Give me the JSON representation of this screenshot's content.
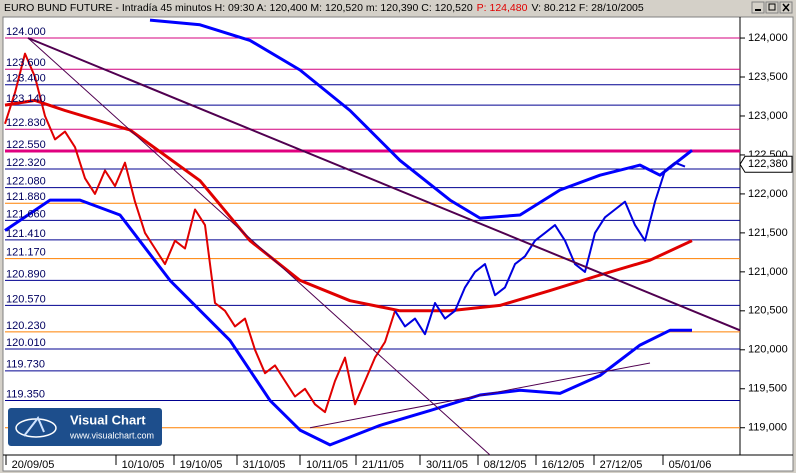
{
  "chart_data": {
    "type": "line",
    "title": "EURO BUND FUTURE - Intradía 45 minutos H: 09:30 A: 120,400 M: 120,520 m: 120,390 C: 120,520",
    "title_highlight": "P: 124,480",
    "title_end": "V: 80.212 F: 28/10/2005",
    "xlim": [
      0,
      147
    ],
    "xticks": [
      {
        "value": 5.6,
        "label": "20/09/05"
      },
      {
        "value": 27.6,
        "label": "10/10/05"
      },
      {
        "value": 39.2,
        "label": "19/10/05"
      },
      {
        "value": 51.8,
        "label": "31/10/05"
      },
      {
        "value": 64.4,
        "label": "10/11/05"
      },
      {
        "value": 75.6,
        "label": "21/11/05"
      },
      {
        "value": 88.4,
        "label": "30/11/05"
      },
      {
        "value": 100,
        "label": "08/12/05"
      },
      {
        "value": 111.6,
        "label": "16/12/05"
      },
      {
        "value": 123.2,
        "label": "27/12/05"
      },
      {
        "value": 137,
        "label": "05/01/06"
      }
    ],
    "ylim": [
      118.65,
      124.27
    ],
    "yticks": [
      {
        "value": 124,
        "label": "124,000"
      },
      {
        "value": 123.5,
        "label": "123,500"
      },
      {
        "value": 123,
        "label": "123,000"
      },
      {
        "value": 122.5,
        "label": "122,500"
      },
      {
        "value": 122,
        "label": "122,000"
      },
      {
        "value": 121.5,
        "label": "121,500"
      },
      {
        "value": 121,
        "label": "121,000"
      },
      {
        "value": 120.5,
        "label": "120,500"
      },
      {
        "value": 120,
        "label": "120,000"
      },
      {
        "value": 119.5,
        "label": "119,500"
      },
      {
        "value": 119,
        "label": "119,000"
      }
    ],
    "last": {
      "value": 122.38,
      "label": "122,380"
    },
    "levels": [
      {
        "value": 124.0,
        "label": "124.000",
        "color": "#d4007f"
      },
      {
        "value": 123.6,
        "label": "123.600",
        "color": "#d4007f"
      },
      {
        "value": 123.4,
        "label": "123.400",
        "color": "#000090"
      },
      {
        "value": 123.14,
        "label": "123.140",
        "color": "#000090"
      },
      {
        "value": 122.83,
        "label": "122.830",
        "color": "#d4007f"
      },
      {
        "value": 122.55,
        "label": "122.550",
        "color": "#e0007f",
        "width": 3
      },
      {
        "value": 122.32,
        "label": "122.320",
        "color": "#000090"
      },
      {
        "value": 122.08,
        "label": "122.080",
        "color": "#000090"
      },
      {
        "value": 121.88,
        "label": "121.880",
        "color": "#ff8000"
      },
      {
        "value": 121.66,
        "label": "121.660",
        "color": "#000090"
      },
      {
        "value": 121.41,
        "label": "121.410",
        "color": "#000090"
      },
      {
        "value": 121.17,
        "label": "121.170",
        "color": "#ff8000"
      },
      {
        "value": 120.89,
        "label": "120.890",
        "color": "#000090"
      },
      {
        "value": 120.57,
        "label": "120.570",
        "color": "#000090"
      },
      {
        "value": 120.23,
        "label": "120.230",
        "color": "#ff8000"
      },
      {
        "value": 120.01,
        "label": "120.010",
        "color": "#000090"
      },
      {
        "value": 119.73,
        "label": "119.730",
        "color": "#000090"
      },
      {
        "value": 119.35,
        "label": "119.350",
        "color": "#000090"
      },
      {
        "value": 119.0,
        "color": "#ff8000"
      }
    ],
    "series": [
      {
        "color": "#0000ff",
        "width": 3,
        "x": [
          29,
          39,
          49,
          59,
          69,
          79,
          89,
          95,
          103,
          111,
          119,
          127,
          131,
          137.4
        ],
        "values": [
          124.23,
          124.17,
          123.97,
          123.59,
          123.07,
          122.43,
          121.92,
          121.69,
          121.73,
          122.05,
          122.24,
          122.37,
          122.24,
          122.56
        ]
      },
      {
        "color": "#0000ff",
        "width": 3,
        "x": [
          0,
          9,
          15,
          23,
          33,
          45,
          53,
          59,
          65,
          75,
          85,
          95,
          103,
          111,
          119,
          127,
          133,
          137.4
        ],
        "values": [
          121.53,
          121.92,
          121.92,
          121.73,
          120.89,
          120.12,
          119.35,
          118.97,
          118.78,
          119.03,
          119.22,
          119.42,
          119.48,
          119.44,
          119.67,
          120.06,
          120.25,
          120.25
        ]
      },
      {
        "color": "#e00000",
        "width": 3,
        "x": [
          0,
          6,
          12,
          25,
          39,
          49,
          59,
          69,
          79,
          89,
          99,
          109,
          119,
          129,
          137.4
        ],
        "values": [
          123.14,
          123.2,
          123.07,
          122.82,
          122.17,
          121.4,
          120.89,
          120.63,
          120.5,
          120.5,
          120.57,
          120.76,
          120.96,
          121.15,
          121.4
        ]
      },
      {
        "color": "#e00000",
        "width": 2,
        "x": [
          0,
          2,
          4,
          6,
          8,
          10,
          12,
          14,
          16,
          18,
          20,
          22,
          24,
          26,
          28,
          30,
          32,
          34,
          36,
          38,
          40,
          42,
          44,
          46,
          48,
          50,
          52,
          54,
          56,
          58,
          60,
          62,
          64,
          66,
          68,
          70,
          72,
          74,
          76,
          78
        ],
        "values": [
          122.9,
          123.3,
          123.8,
          123.5,
          123.0,
          122.7,
          122.8,
          122.6,
          122.2,
          122.0,
          122.3,
          122.1,
          122.4,
          121.9,
          121.5,
          121.3,
          121.1,
          121.4,
          121.3,
          121.8,
          121.6,
          120.6,
          120.5,
          120.3,
          120.4,
          120.0,
          119.7,
          119.8,
          119.6,
          119.4,
          119.5,
          119.3,
          119.2,
          119.6,
          119.9,
          119.3,
          119.6,
          119.9,
          120.1,
          120.5
        ]
      },
      {
        "color": "#0000e0",
        "width": 2,
        "x": [
          78,
          80,
          82,
          84,
          86,
          88,
          90,
          92,
          94,
          96,
          98,
          100,
          102,
          104,
          106,
          108,
          110,
          112,
          114,
          116,
          118,
          120,
          122,
          124,
          126,
          128,
          130,
          132,
          134,
          136
        ],
        "values": [
          120.5,
          120.3,
          120.4,
          120.2,
          120.6,
          120.4,
          120.5,
          120.8,
          121.0,
          121.1,
          120.7,
          120.8,
          121.1,
          121.2,
          121.4,
          121.5,
          121.6,
          121.4,
          121.1,
          121.0,
          121.5,
          121.7,
          121.8,
          121.9,
          121.6,
          121.4,
          121.9,
          122.3,
          122.4,
          122.35
        ]
      },
      {
        "color": "#500050",
        "width": 2,
        "x": [
          4.6,
          147
        ],
        "values": [
          124.0,
          120.25
        ]
      },
      {
        "color": "#500050",
        "width": 1,
        "x": [
          4.6,
          97
        ],
        "values": [
          124.0,
          118.65
        ]
      },
      {
        "color": "#500050",
        "width": 1,
        "x": [
          61,
          129
        ],
        "values": [
          119.0,
          119.83
        ]
      }
    ],
    "logo": {
      "title": "Visual Chart",
      "url": "www.visualchart.com"
    }
  }
}
